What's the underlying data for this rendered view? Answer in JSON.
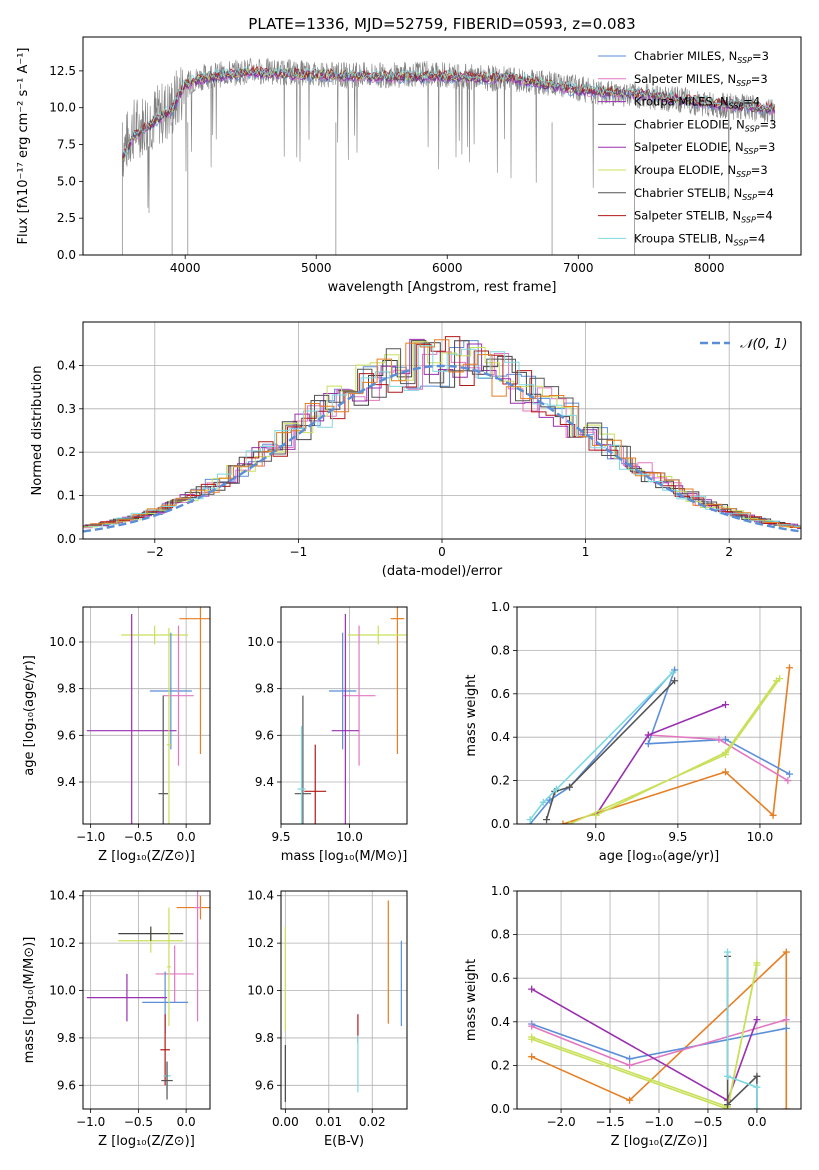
{
  "colors": {
    "gray": "#808080",
    "pink": "#e377c2",
    "blue": "#5a8fd8",
    "dark": "#444444",
    "purple": "#9a2fb0",
    "lime": "#c8e05a",
    "darkgray": "#555555",
    "darkred": "#b21818",
    "cyan": "#7ed8e0",
    "orange": "#e67e22",
    "grid": "#b0b0b0"
  },
  "chart_data": [
    {
      "id": "spectrum",
      "type": "line",
      "title": "PLATE=1336, MJD=52759, FIBERID=0593, z=0.083",
      "xlabel": "wavelength [Angstrom, rest frame]",
      "ylabel": "Flux [fλ10⁻¹⁷ erg cm⁻² s⁻¹ A⁻¹]",
      "xlim": [
        3220,
        8700
      ],
      "ylim": [
        0,
        14.8
      ],
      "xticks": [
        4000,
        5000,
        6000,
        7000,
        8000
      ],
      "yticks": [
        0.0,
        2.5,
        5.0,
        7.5,
        10.0,
        12.5
      ],
      "xtick_labels": [
        "4000",
        "5000",
        "6000",
        "7000",
        "8000"
      ],
      "ytick_labels": [
        "0.0",
        "2.5",
        "5.0",
        "7.5",
        "10.0",
        "12.5"
      ],
      "grid": false,
      "legend_position": "top-right",
      "observed": {
        "x": [
          3520,
          3600,
          3700,
          3800,
          3900,
          3950,
          4000,
          4100,
          4200,
          4300,
          4500,
          4800,
          5000,
          5200,
          5500,
          5800,
          6000,
          6300,
          6600,
          6900,
          7200,
          7500,
          7800,
          8000,
          8300,
          8500
        ],
        "y": [
          7.0,
          8.5,
          9.0,
          9.5,
          10.0,
          10.8,
          11.5,
          12.0,
          12.2,
          12.3,
          12.5,
          12.4,
          12.3,
          12.2,
          12.2,
          12.3,
          12.2,
          12.0,
          11.8,
          11.5,
          11.0,
          10.8,
          10.5,
          10.2,
          10.0,
          9.8
        ]
      },
      "models": {
        "x": [
          3520,
          3600,
          3700,
          3800,
          3900,
          4000,
          4200,
          4500,
          5000,
          5500,
          6000,
          6500,
          7000,
          7500,
          8000,
          8500
        ],
        "y": [
          6.5,
          8.0,
          8.6,
          9.3,
          9.9,
          11.6,
          12.1,
          12.4,
          12.2,
          12.1,
          12.1,
          12.0,
          11.2,
          10.9,
          10.3,
          9.9
        ]
      },
      "series": [
        {
          "name": "Chabrier MILES, N_SSP=3",
          "color": "blue"
        },
        {
          "name": "Salpeter MILES, N_SSP=3",
          "color": "pink"
        },
        {
          "name": "Kroupa MILES, N_SSP=4",
          "color": "purple"
        },
        {
          "name": "Chabrier ELODIE, N_SSP=3",
          "color": "dark"
        },
        {
          "name": "Salpeter ELODIE, N_SSP=3",
          "color": "purple"
        },
        {
          "name": "Kroupa ELODIE, N_SSP=3",
          "color": "lime"
        },
        {
          "name": "Chabrier STELIB, N_SSP=4",
          "color": "darkgray"
        },
        {
          "name": "Salpeter STELIB, N_SSP=4",
          "color": "darkred"
        },
        {
          "name": "Kroupa STELIB, N_SSP=4",
          "color": "cyan"
        }
      ],
      "legend": [
        {
          "label": "Chabrier MILES, N",
          "sub": "SSP",
          "suffix": "=3",
          "color": "blue"
        },
        {
          "label": "Salpeter MILES, N",
          "sub": "SSP",
          "suffix": "=3",
          "color": "pink"
        },
        {
          "label": "Kroupa MILES, N",
          "sub": "SSP",
          "suffix": "=4",
          "color": "purple"
        },
        {
          "label": "Chabrier ELODIE, N",
          "sub": "SSP",
          "suffix": "=3",
          "color": "dark"
        },
        {
          "label": "Salpeter ELODIE, N",
          "sub": "SSP",
          "suffix": "=3",
          "color": "purple"
        },
        {
          "label": "Kroupa ELODIE, N",
          "sub": "SSP",
          "suffix": "=3",
          "color": "lime"
        },
        {
          "label": "Chabrier STELIB, N",
          "sub": "SSP",
          "suffix": "=4",
          "color": "darkgray"
        },
        {
          "label": "Salpeter STELIB, N",
          "sub": "SSP",
          "suffix": "=4",
          "color": "darkred"
        },
        {
          "label": "Kroupa STELIB, N",
          "sub": "SSP",
          "suffix": "=4",
          "color": "cyan"
        }
      ]
    },
    {
      "id": "residuals",
      "type": "bar",
      "xlabel": "(data-model)/error",
      "ylabel": "Normed distribution",
      "xlim": [
        -2.5,
        2.5
      ],
      "ylim": [
        0,
        0.5
      ],
      "xticks": [
        -2,
        -1,
        0,
        1,
        2
      ],
      "yticks": [
        0.0,
        0.1,
        0.2,
        0.3,
        0.4
      ],
      "xtick_labels": [
        "−2",
        "−1",
        "0",
        "1",
        "2"
      ],
      "ytick_labels": [
        "0.0",
        "0.1",
        "0.2",
        "0.3",
        "0.4"
      ],
      "grid": true,
      "legend_position": "top-right",
      "legend_label": "𝒩(0, 1)",
      "gaussian": {
        "mean": 0,
        "sigma": 1,
        "color": "blue"
      },
      "bin_width": 0.1
    },
    {
      "id": "age_vs_Z",
      "type": "scatter",
      "xlabel": "Z [log₁₀(Z/Z⊙)]",
      "ylabel": "age  [log₁₀(age/yr)]",
      "xlim": [
        -1.08,
        0.25
      ],
      "ylim": [
        9.22,
        10.15
      ],
      "xticks": [
        -1.0,
        -0.5,
        0.0
      ],
      "yticks": [
        9.4,
        9.6,
        9.8,
        10.0
      ],
      "xtick_labels": [
        "−1.0",
        "−0.5",
        "0.0"
      ],
      "ytick_labels": [
        "9.4",
        "9.6",
        "9.8",
        "10.0"
      ],
      "grid": true,
      "points": [
        {
          "x": 0.15,
          "y": 10.1,
          "xerr": 0.22,
          "yerr": 0.58,
          "color": "orange"
        },
        {
          "x": -0.33,
          "y": 10.03,
          "xerr": 0.35,
          "yerr": 0.04,
          "color": "lime"
        },
        {
          "x": -0.16,
          "y": 9.79,
          "xerr": 0.22,
          "yerr": 0.25,
          "color": "blue"
        },
        {
          "x": -0.08,
          "y": 9.77,
          "xerr": 0.16,
          "yerr": 0.3,
          "color": "pink"
        },
        {
          "x": -0.57,
          "y": 9.62,
          "xerr": 0.47,
          "yerr": 0.5,
          "color": "purple"
        },
        {
          "x": -0.24,
          "y": 9.35,
          "xerr": 0.05,
          "yerr": 0.42,
          "color": "darkgray"
        },
        {
          "x": -0.18,
          "y": 9.56,
          "xerr": 0.02,
          "yerr": 0.5,
          "color": "lime"
        }
      ]
    },
    {
      "id": "age_vs_mass",
      "type": "scatter",
      "xlabel": "mass [log₁₀(M/M⊙)]",
      "xlim": [
        9.5,
        10.42
      ],
      "ylim": [
        9.22,
        10.15
      ],
      "xticks": [
        9.5,
        10.0
      ],
      "yticks": [
        9.4,
        9.6,
        9.8,
        10.0
      ],
      "xtick_labels": [
        "9.5",
        "10.0"
      ],
      "ytick_labels": [
        "9.4",
        "9.6",
        "9.8",
        "10.0"
      ],
      "grid": true,
      "points": [
        {
          "x": 10.35,
          "y": 10.1,
          "xerr": 0.05,
          "yerr": 0.58,
          "color": "orange"
        },
        {
          "x": 10.21,
          "y": 10.03,
          "xerr": 0.22,
          "yerr": 0.04,
          "color": "lime"
        },
        {
          "x": 9.95,
          "y": 9.79,
          "xerr": 0.1,
          "yerr": 0.25,
          "color": "blue"
        },
        {
          "x": 10.07,
          "y": 9.77,
          "xerr": 0.12,
          "yerr": 0.3,
          "color": "pink"
        },
        {
          "x": 9.97,
          "y": 9.62,
          "xerr": 0.1,
          "yerr": 0.5,
          "color": "purple"
        },
        {
          "x": 9.66,
          "y": 9.35,
          "xerr": 0.06,
          "yerr": 0.42,
          "color": "darkgray"
        },
        {
          "x": 9.75,
          "y": 9.36,
          "xerr": 0.08,
          "yerr": 0.2,
          "color": "darkred"
        },
        {
          "x": 9.65,
          "y": 9.37,
          "xerr": 0.03,
          "yerr": 0.27,
          "color": "cyan"
        }
      ]
    },
    {
      "id": "mass_weight_vs_age",
      "type": "line",
      "xlabel": "age  [log₁₀(age/yr)]",
      "ylabel": "mass weight",
      "xlim": [
        8.52,
        10.25
      ],
      "ylim": [
        0,
        1.0
      ],
      "xticks": [
        9.0,
        9.5,
        10.0
      ],
      "yticks": [
        0.0,
        0.2,
        0.4,
        0.6,
        0.8,
        1.0
      ],
      "xtick_labels": [
        "9.0",
        "9.5",
        "10.0"
      ],
      "ytick_labels": [
        "0.0",
        "0.2",
        "0.4",
        "0.6",
        "0.8",
        "1.0"
      ],
      "grid": true,
      "series": [
        {
          "color": "orange",
          "x": [
            8.8,
            9.79,
            10.08,
            10.18
          ],
          "y": [
            0.0,
            0.24,
            0.04,
            0.72
          ]
        },
        {
          "color": "blue",
          "x": [
            8.6,
            8.72,
            8.84,
            9.48,
            9.32,
            9.79,
            10.18
          ],
          "y": [
            0.0,
            0.11,
            0.17,
            0.71,
            0.37,
            0.39,
            0.23
          ]
        },
        {
          "color": "pink",
          "x": [
            9.32,
            9.75,
            10.17
          ],
          "y": [
            0.41,
            0.39,
            0.2
          ]
        },
        {
          "color": "purple",
          "x": [
            9.0,
            9.32,
            9.79
          ],
          "y": [
            0.04,
            0.41,
            0.55
          ]
        },
        {
          "color": "lime",
          "x": [
            8.84,
            9.79,
            10.12
          ],
          "y": [
            0.0,
            0.32,
            0.67
          ]
        },
        {
          "color": "lime",
          "x": [
            9.0,
            9.79,
            10.1
          ],
          "y": [
            0.04,
            0.33,
            0.66
          ]
        },
        {
          "color": "darkgray",
          "x": [
            8.7,
            8.75,
            8.84,
            9.48
          ],
          "y": [
            0.02,
            0.15,
            0.17,
            0.66
          ]
        },
        {
          "color": "cyan",
          "x": [
            8.6,
            8.68,
            8.76,
            9.47
          ],
          "y": [
            0.02,
            0.1,
            0.16,
            0.7
          ]
        }
      ]
    },
    {
      "id": "mass_vs_Z",
      "type": "scatter",
      "xlabel": "Z [log₁₀(Z/Z⊙)]",
      "ylabel": "mass [log₁₀(M/M⊙)]",
      "xlim": [
        -1.08,
        0.25
      ],
      "ylim": [
        9.5,
        10.42
      ],
      "xticks": [
        -1.0,
        -0.5,
        0.0
      ],
      "yticks": [
        9.6,
        9.8,
        10.0,
        10.2,
        10.4
      ],
      "xtick_labels": [
        "−1.0",
        "−0.5",
        "0.0"
      ],
      "ytick_labels": [
        "9.6",
        "9.8",
        "10.0",
        "10.2",
        "10.4"
      ],
      "grid": true,
      "points": [
        {
          "x": 0.15,
          "y": 10.35,
          "xerr": 0.25,
          "yerr": 0.05,
          "color": "orange"
        },
        {
          "x": -0.37,
          "y": 10.21,
          "xerr": 0.34,
          "yerr": 0.05,
          "color": "lime"
        },
        {
          "x": -0.37,
          "y": 10.24,
          "xerr": 0.34,
          "yerr": 0.03,
          "color": "dark"
        },
        {
          "x": 0.12,
          "y": 10.35,
          "xerr": 0.04,
          "yerr": 0.48,
          "color": "pink"
        },
        {
          "x": -0.12,
          "y": 10.07,
          "xerr": 0.2,
          "yerr": 0.12,
          "color": "pink"
        },
        {
          "x": -0.22,
          "y": 9.95,
          "xerr": 0.24,
          "yerr": 0.13,
          "color": "blue"
        },
        {
          "x": -0.62,
          "y": 9.97,
          "xerr": 0.42,
          "yerr": 0.1,
          "color": "purple"
        },
        {
          "x": -0.22,
          "y": 9.75,
          "xerr": 0.05,
          "yerr": 0.15,
          "color": "darkred"
        },
        {
          "x": -0.2,
          "y": 9.64,
          "xerr": 0.04,
          "yerr": 0.06,
          "color": "cyan"
        },
        {
          "x": -0.2,
          "y": 9.62,
          "xerr": 0.06,
          "yerr": 0.08,
          "color": "darkgray"
        },
        {
          "x": -0.18,
          "y": 10.1,
          "xerr": 0.02,
          "yerr": 0.25,
          "color": "lime"
        }
      ]
    },
    {
      "id": "mass_vs_ebv",
      "type": "scatter",
      "xlabel": "E(B-V)",
      "xlim": [
        -0.001,
        0.028
      ],
      "ylim": [
        9.5,
        10.42
      ],
      "xticks": [
        0.0,
        0.01,
        0.02
      ],
      "yticks": [
        9.6,
        9.8,
        10.0,
        10.2,
        10.4
      ],
      "xtick_labels": [
        "0.00",
        "0.01",
        "0.02"
      ],
      "ytick_labels": [
        "9.6",
        "9.8",
        "10.0",
        "10.2",
        "10.4"
      ],
      "grid": true,
      "points": [
        {
          "x": 0.0,
          "y": 10.05,
          "xerr": 0,
          "yerr": 0.22,
          "color": "lime"
        },
        {
          "x": 0.0,
          "y": 9.65,
          "xerr": 0,
          "yerr": 0.12,
          "color": "dark"
        },
        {
          "x": 0.0237,
          "y": 10.12,
          "xerr": 0,
          "yerr": 0.26,
          "color": "orange"
        },
        {
          "x": 0.0267,
          "y": 10.03,
          "xerr": 0,
          "yerr": 0.18,
          "color": "blue"
        },
        {
          "x": 0.0167,
          "y": 9.84,
          "xerr": 0,
          "yerr": 0.06,
          "color": "darkred"
        },
        {
          "x": 0.0167,
          "y": 9.69,
          "xerr": 0,
          "yerr": 0.12,
          "color": "cyan"
        }
      ]
    },
    {
      "id": "mass_weight_vs_Z",
      "type": "line",
      "xlabel": "Z [log₁₀(Z/Z⊙)]",
      "ylabel": "mass weight",
      "xlim": [
        -2.45,
        0.45
      ],
      "ylim": [
        0,
        1.0
      ],
      "xticks": [
        -2.0,
        -1.5,
        -1.0,
        -0.5,
        0.0
      ],
      "yticks": [
        0.0,
        0.2,
        0.4,
        0.6,
        0.8,
        1.0
      ],
      "xtick_labels": [
        "−2.0",
        "−1.5",
        "−1.0",
        "−0.5",
        "0.0"
      ],
      "ytick_labels": [
        "0.0",
        "0.2",
        "0.4",
        "0.6",
        "0.8",
        "1.0"
      ],
      "grid": true,
      "series": [
        {
          "color": "orange",
          "x": [
            -2.3,
            -1.3,
            0.3,
            0.3
          ],
          "y": [
            0.24,
            0.04,
            0.72,
            0.0
          ]
        },
        {
          "color": "blue",
          "x": [
            -2.3,
            -1.3,
            0.3
          ],
          "y": [
            0.39,
            0.23,
            0.37
          ]
        },
        {
          "color": "pink",
          "x": [
            -2.3,
            -1.3,
            0.3
          ],
          "y": [
            0.38,
            0.2,
            0.41
          ]
        },
        {
          "color": "purple",
          "x": [
            -2.3,
            -0.3,
            0.0
          ],
          "y": [
            0.55,
            0.04,
            0.41
          ]
        },
        {
          "color": "lime",
          "x": [
            -2.3,
            -0.3,
            0.0
          ],
          "y": [
            0.32,
            0.0,
            0.67
          ]
        },
        {
          "color": "lime",
          "x": [
            -2.3,
            -0.3,
            0.0
          ],
          "y": [
            0.33,
            0.01,
            0.66
          ]
        },
        {
          "color": "darkgray",
          "x": [
            -0.3,
            -0.3,
            0.0,
            0.0
          ],
          "y": [
            0.7,
            0.02,
            0.15,
            0.0
          ]
        },
        {
          "color": "cyan",
          "x": [
            -0.3,
            -0.3,
            0.0,
            0.0
          ],
          "y": [
            0.72,
            0.15,
            0.1,
            0.0
          ]
        }
      ]
    }
  ]
}
